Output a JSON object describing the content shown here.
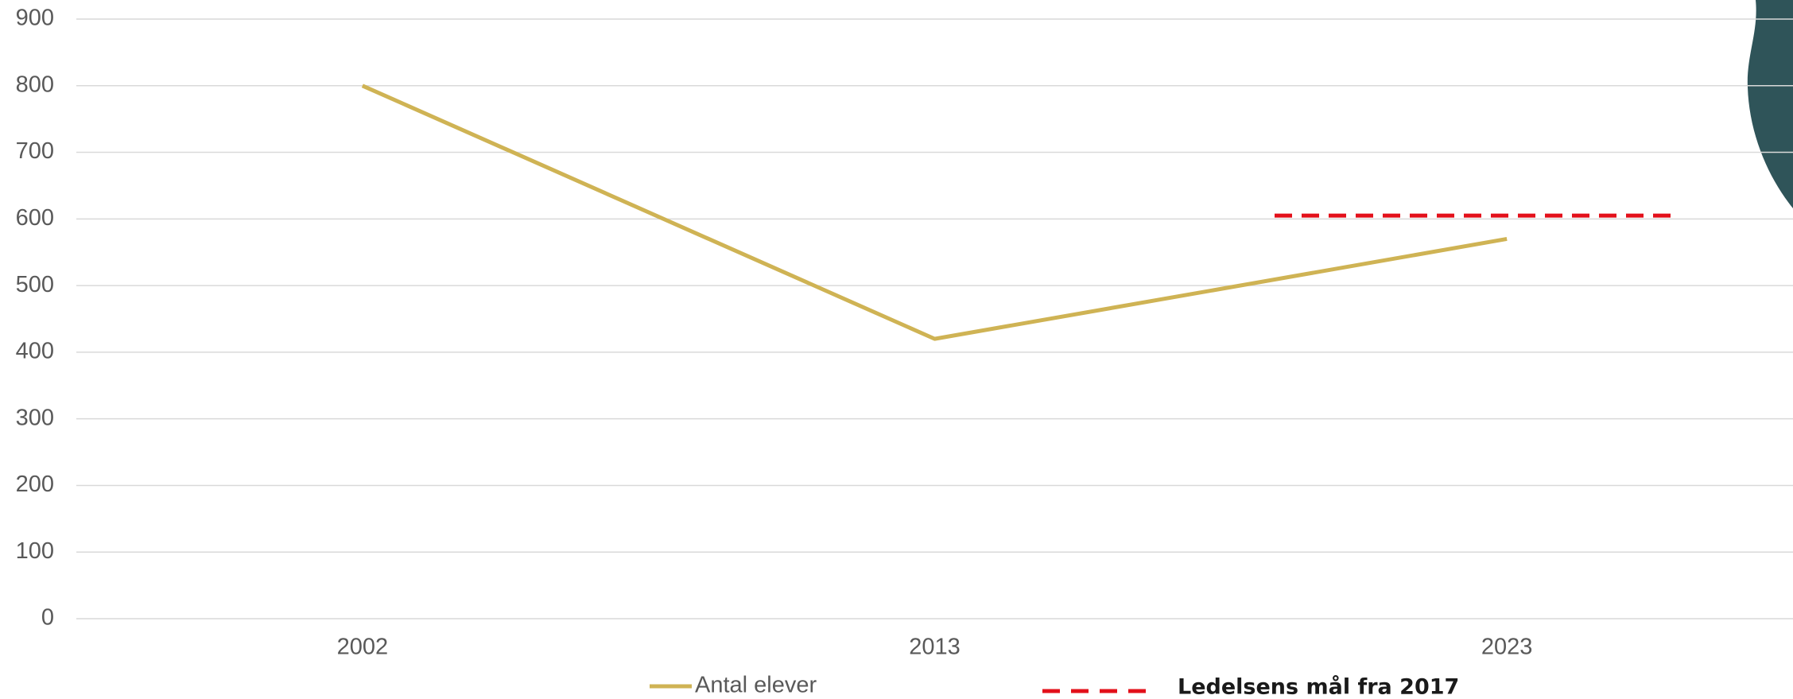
{
  "chart_data": {
    "type": "line",
    "categories": [
      "2002",
      "2013",
      "2023"
    ],
    "series": [
      {
        "name": "Antal elever",
        "color": "#cfb354",
        "values": [
          800,
          420,
          570
        ]
      }
    ],
    "target": {
      "label": "Ledelsens mål fra 2017",
      "value": 605,
      "color": "#e3101a"
    },
    "ylim": [
      0,
      900
    ],
    "yticks": [
      0,
      100,
      200,
      300,
      400,
      500,
      600,
      700,
      800,
      900
    ],
    "grid": true
  }
}
